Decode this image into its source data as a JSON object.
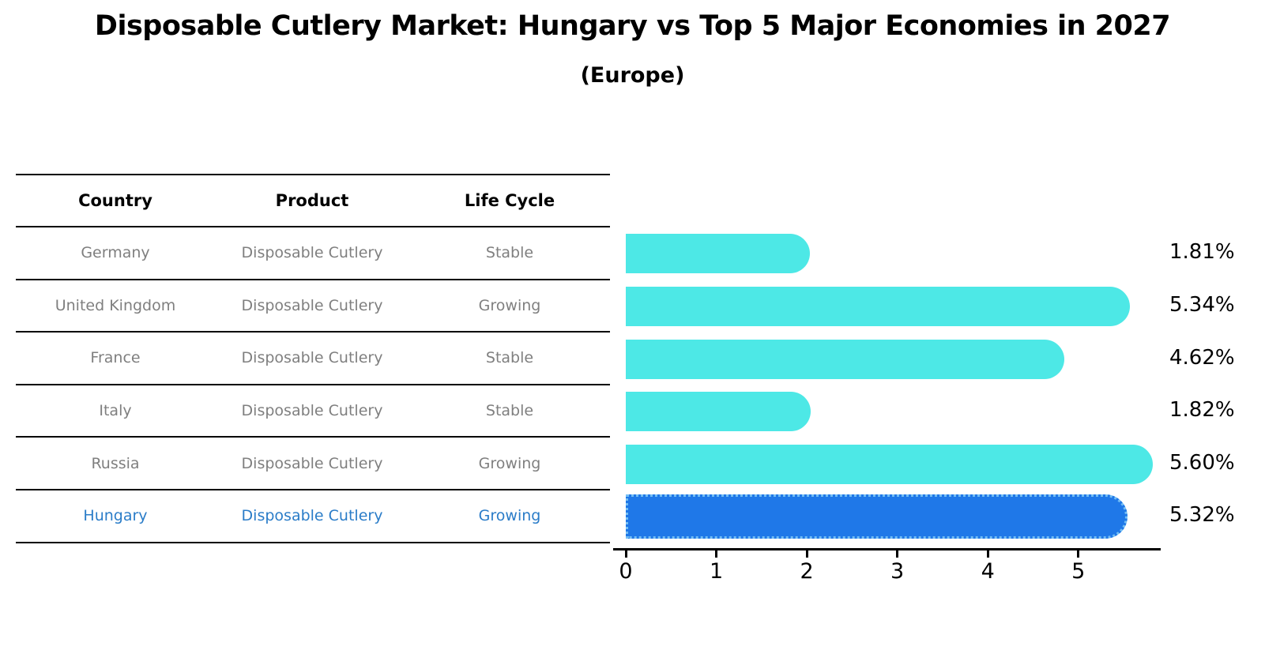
{
  "header": {
    "title": "Disposable Cutlery Market: Hungary vs Top 5 Major Economies in 2027",
    "subtitle": "(Europe)"
  },
  "table": {
    "headers": [
      "Country",
      "Product",
      "Life Cycle"
    ],
    "rows": [
      {
        "country": "Germany",
        "product": "Disposable Cutlery",
        "life_cycle": "Stable",
        "highlighted": false
      },
      {
        "country": "United Kingdom",
        "product": "Disposable Cutlery",
        "life_cycle": "Growing",
        "highlighted": false
      },
      {
        "country": "France",
        "product": "Disposable Cutlery",
        "life_cycle": "Stable",
        "highlighted": false
      },
      {
        "country": "Italy",
        "product": "Disposable Cutlery",
        "life_cycle": "Stable",
        "highlighted": false
      },
      {
        "country": "Russia",
        "product": "Disposable Cutlery",
        "life_cycle": "Growing",
        "highlighted": false
      },
      {
        "country": "Hungary",
        "product": "Disposable Cutlery",
        "life_cycle": "Growing",
        "highlighted": true
      }
    ]
  },
  "chart_data": {
    "type": "bar",
    "orientation": "horizontal",
    "title": "Disposable Cutlery Market: Hungary vs Top 5 Major Economies in 2027",
    "subtitle": "(Europe)",
    "categories": [
      "Germany",
      "United Kingdom",
      "France",
      "Italy",
      "Russia",
      "Hungary"
    ],
    "values": [
      1.81,
      5.34,
      4.62,
      1.82,
      5.6,
      5.32
    ],
    "value_labels": [
      "1.81%",
      "5.34%",
      "4.62%",
      "1.82%",
      "5.60%",
      "5.32%"
    ],
    "highlight_index": 5,
    "xticks": [
      "0",
      "1",
      "2",
      "3",
      "4",
      "5"
    ],
    "xlabel": "",
    "ylabel": "",
    "xlim": [
      0,
      5.9
    ],
    "grid": false,
    "legend": "none",
    "bar_color": "#4de8e6",
    "highlight_bar_color": "#1f78e8",
    "highlight_border_color": "#74bef4",
    "text_color": "#000000",
    "row_text_color": "#7f7f7f",
    "highlight_text_color": "#2a7cc8"
  }
}
